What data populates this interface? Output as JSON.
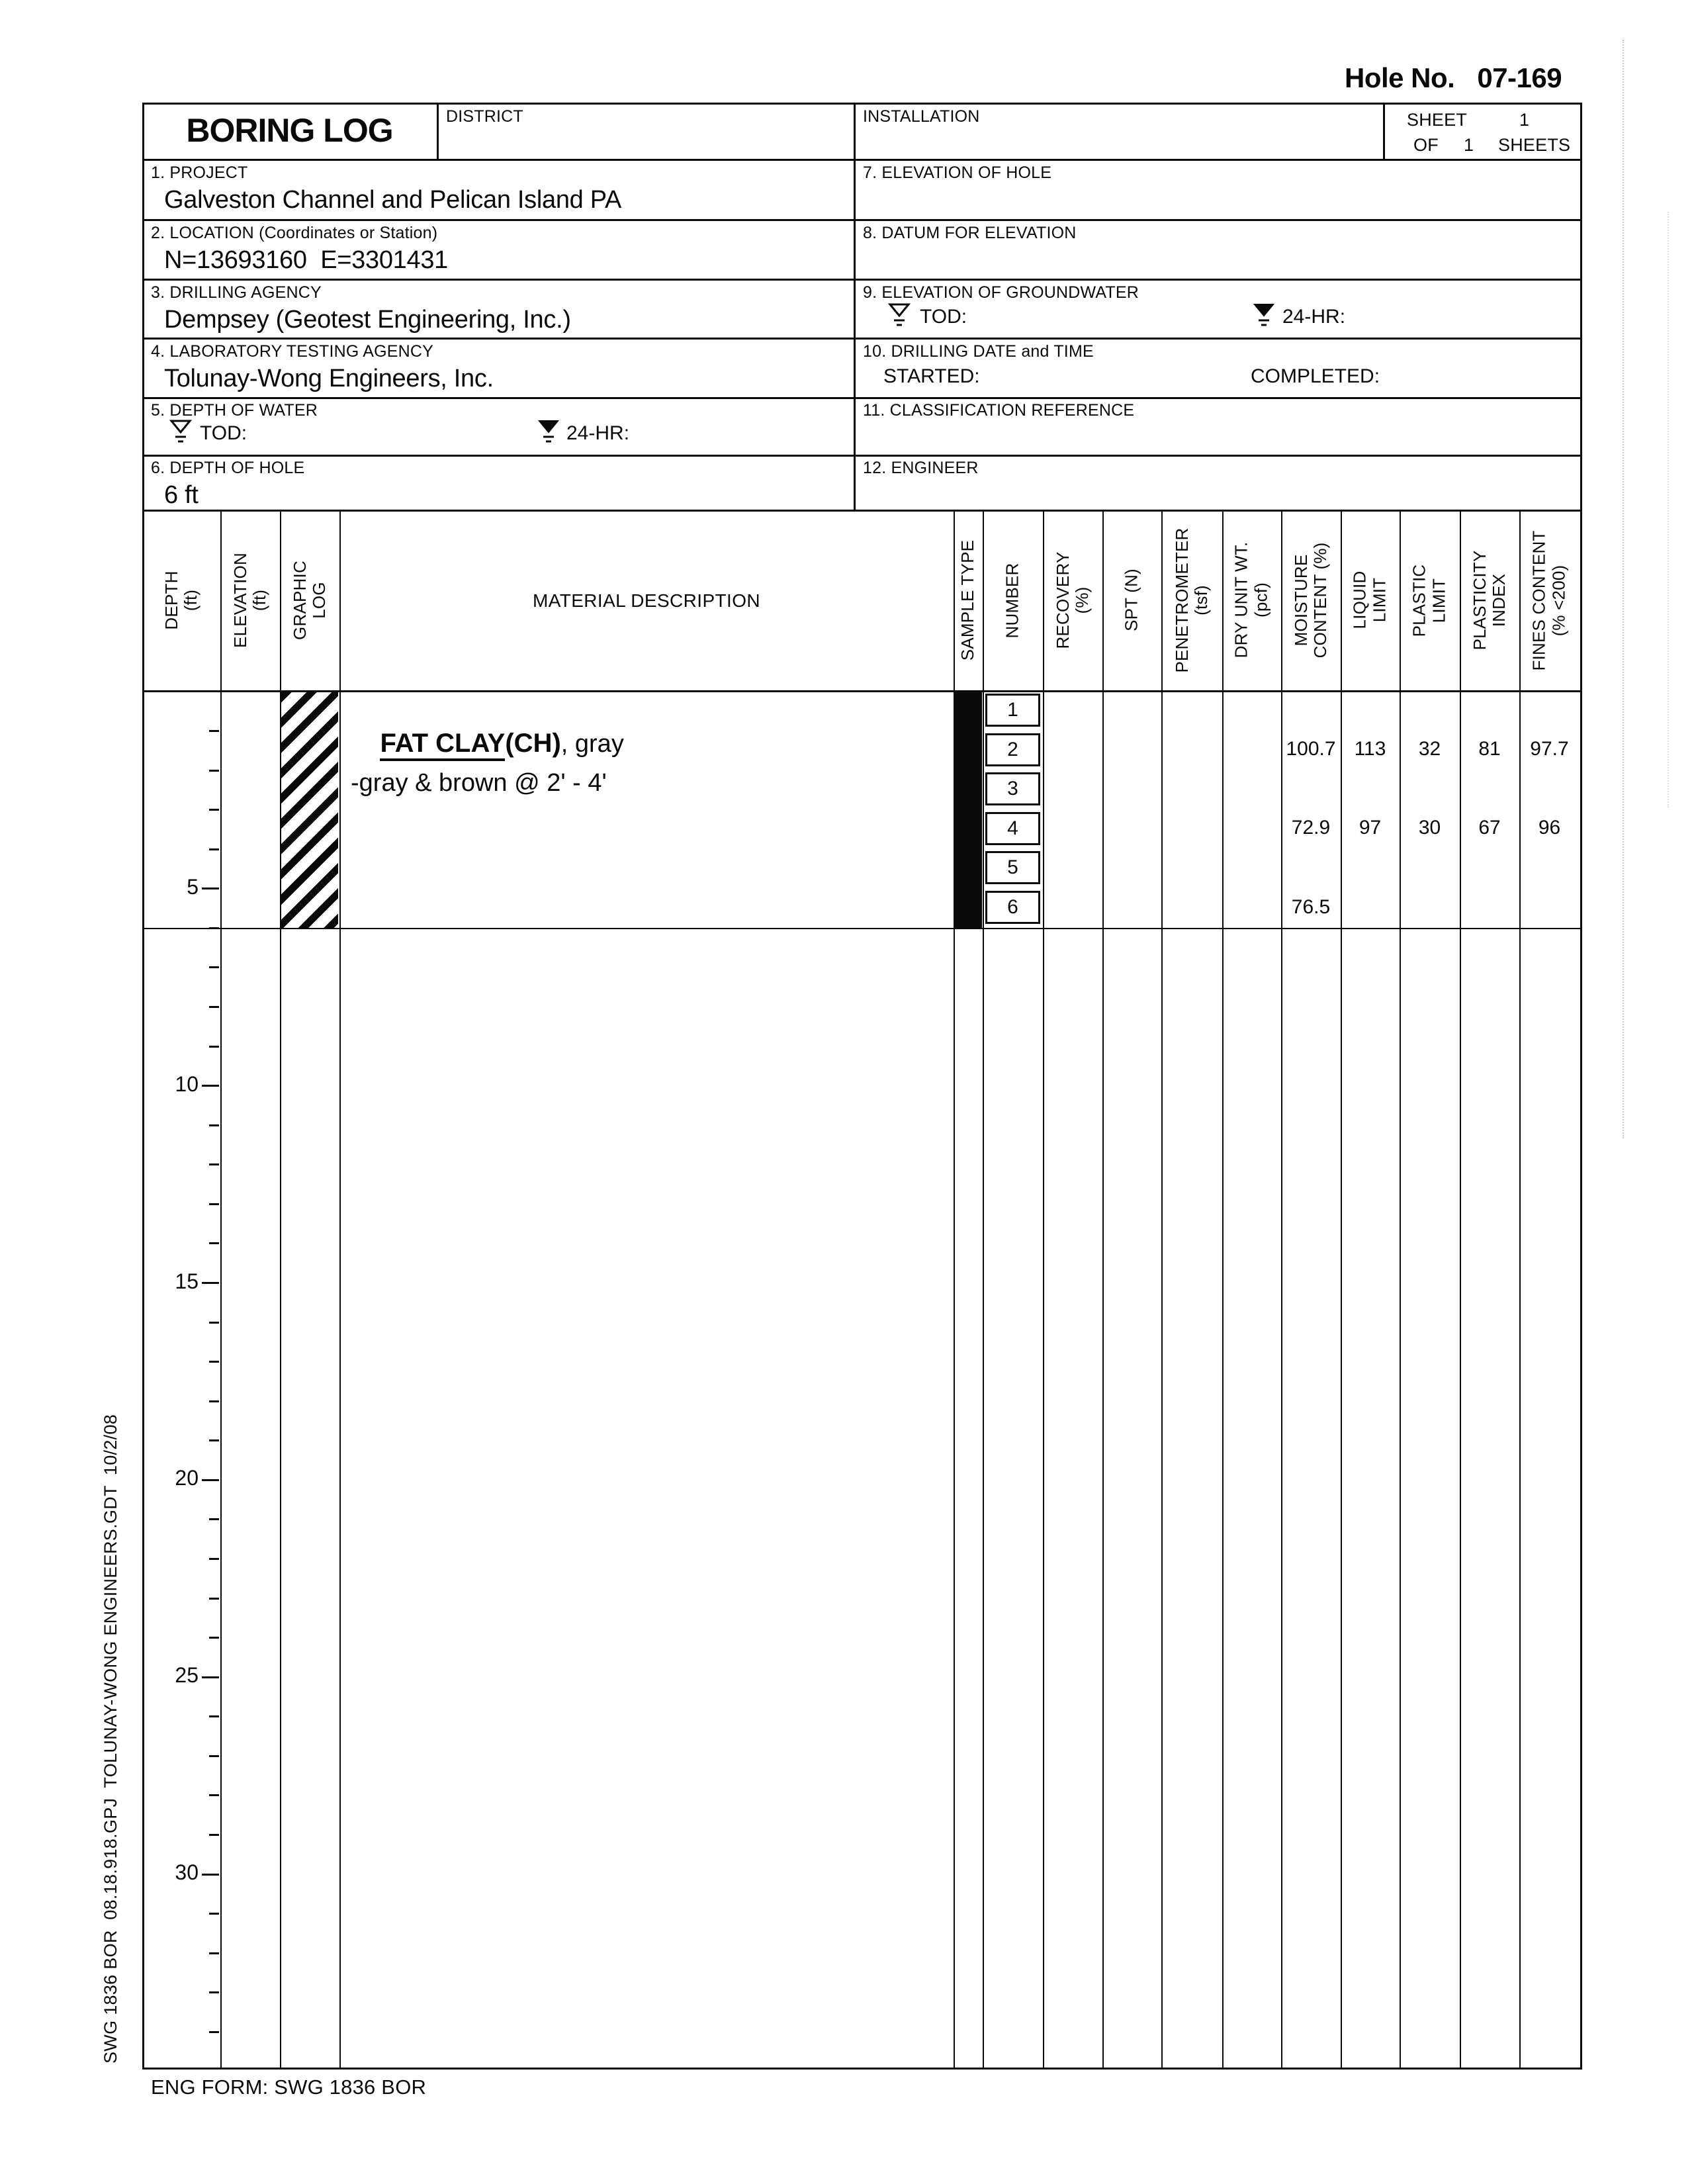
{
  "page": {
    "hole_no_label": "Hole No.",
    "hole_no": "07-169",
    "footer": "ENG FORM: SWG 1836 BOR",
    "sidebar": "SWG 1836 BOR  08.18.918.GPJ  TOLUNAY-WONG ENGINEERS.GDT  10/2/08"
  },
  "header": {
    "title": "BORING LOG",
    "district_label": "DISTRICT",
    "installation_label": "INSTALLATION",
    "sheet_label": "SHEET",
    "sheet_no": "1",
    "of_label": "OF",
    "sheets_count": "1",
    "sheets_label": "SHEETS"
  },
  "sections": {
    "s1": {
      "label": "1. PROJECT",
      "value": "Galveston Channel and Pelican Island PA"
    },
    "s2": {
      "label": "2. LOCATION (Coordinates or Station)",
      "value": "N=13693160  E=3301431"
    },
    "s3": {
      "label": "3. DRILLING AGENCY",
      "value": "Dempsey (Geotest Engineering, Inc.)"
    },
    "s4": {
      "label": "4. LABORATORY TESTING AGENCY",
      "value": "Tolunay-Wong Engineers, Inc."
    },
    "s5": {
      "label": "5. DEPTH OF WATER",
      "tod_label": "TOD:",
      "hr_label": "24-HR:"
    },
    "s6": {
      "label": "6. DEPTH OF HOLE",
      "value": "6 ft"
    },
    "s7": {
      "label": "7. ELEVATION OF HOLE",
      "value": ""
    },
    "s8": {
      "label": "8. DATUM FOR ELEVATION",
      "value": ""
    },
    "s9": {
      "label": "9. ELEVATION OF GROUNDWATER",
      "tod_label": "TOD:",
      "hr_label": "24-HR:"
    },
    "s10": {
      "label": "10. DRILLING DATE and TIME",
      "started_label": "STARTED:",
      "completed_label": "COMPLETED:"
    },
    "s11": {
      "label": "11. CLASSIFICATION REFERENCE",
      "value": ""
    },
    "s12": {
      "label": "12. ENGINEER",
      "value": ""
    }
  },
  "log_table": {
    "columns": [
      "DEPTH\n(ft)",
      "ELEVATION\n(ft)",
      "GRAPHIC\nLOG",
      "MATERIAL DESCRIPTION",
      "SAMPLE TYPE",
      "NUMBER",
      "RECOVERY\n(%)",
      "SPT (N)",
      "PENETROMETER\n(tsf)",
      "DRY UNIT WT.\n(pcf)",
      "MOISTURE\nCONTENT (%)",
      "LIQUID\nLIMIT",
      "PLASTIC\nLIMIT",
      "PLASTICITY\nINDEX",
      "FINES CONTENT\n(% <200)"
    ],
    "material": {
      "t1": "FAT CLAY",
      "t2": "(CH)",
      "t3": ", gray",
      "note": "-gray & brown @ 2' - 4'"
    },
    "samples": [
      {
        "number": "1",
        "moisture": "",
        "liquid_limit": "",
        "plastic_limit": "",
        "plasticity_index": "",
        "fines": ""
      },
      {
        "number": "2",
        "moisture": "100.7",
        "liquid_limit": "113",
        "plastic_limit": "32",
        "plasticity_index": "81",
        "fines": "97.7"
      },
      {
        "number": "3",
        "moisture": "",
        "liquid_limit": "",
        "plastic_limit": "",
        "plasticity_index": "",
        "fines": ""
      },
      {
        "number": "4",
        "moisture": "72.9",
        "liquid_limit": "97",
        "plastic_limit": "30",
        "plasticity_index": "67",
        "fines": "96"
      },
      {
        "number": "5",
        "moisture": "",
        "liquid_limit": "",
        "plastic_limit": "",
        "plasticity_index": "",
        "fines": ""
      },
      {
        "number": "6",
        "moisture": "76.5",
        "liquid_limit": "",
        "plastic_limit": "",
        "plasticity_index": "",
        "fines": ""
      }
    ],
    "depth_scale": {
      "labels": [
        "5",
        "10",
        "15",
        "20",
        "25",
        "30"
      ]
    }
  }
}
